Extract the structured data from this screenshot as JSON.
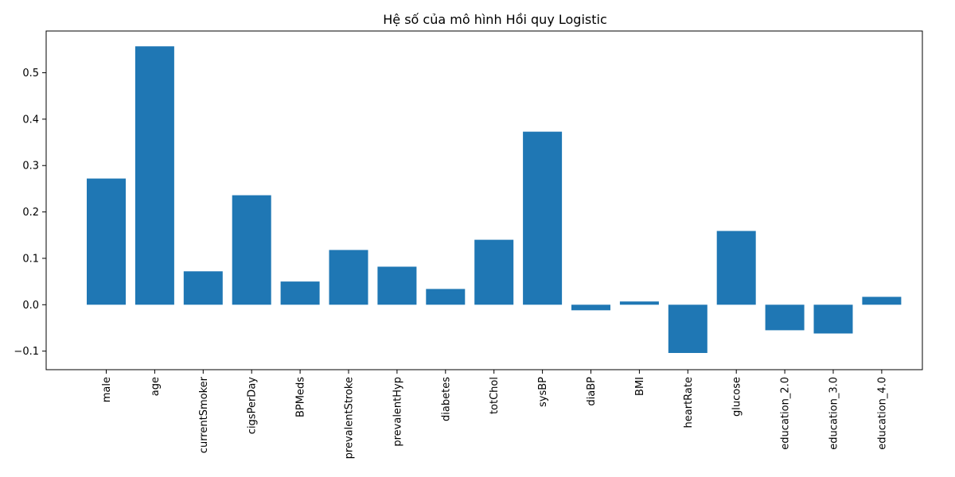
{
  "chart_data": {
    "type": "bar",
    "title": "Hệ số của mô hình Hồi quy Logistic",
    "xlabel": "",
    "ylabel": "",
    "categories": [
      "male",
      "age",
      "currentSmoker",
      "cigsPerDay",
      "BPMeds",
      "prevalentStroke",
      "prevalentHyp",
      "diabetes",
      "totChol",
      "sysBP",
      "diaBP",
      "BMI",
      "heartRate",
      "glucose",
      "education_2.0",
      "education_3.0",
      "education_4.0"
    ],
    "values": [
      0.272,
      0.557,
      0.072,
      0.236,
      0.05,
      0.118,
      0.082,
      0.034,
      0.14,
      0.373,
      -0.012,
      0.007,
      -0.104,
      0.159,
      -0.055,
      -0.062,
      0.017
    ],
    "ylim": [
      -0.14,
      0.59
    ],
    "yticks": [
      -0.1,
      0.0,
      0.1,
      0.2,
      0.3,
      0.4,
      0.5
    ],
    "ytick_labels": [
      "−0.1",
      "0.0",
      "0.1",
      "0.2",
      "0.3",
      "0.4",
      "0.5"
    ],
    "bar_color": "#1f77b4",
    "grid": false,
    "legend": "none"
  }
}
